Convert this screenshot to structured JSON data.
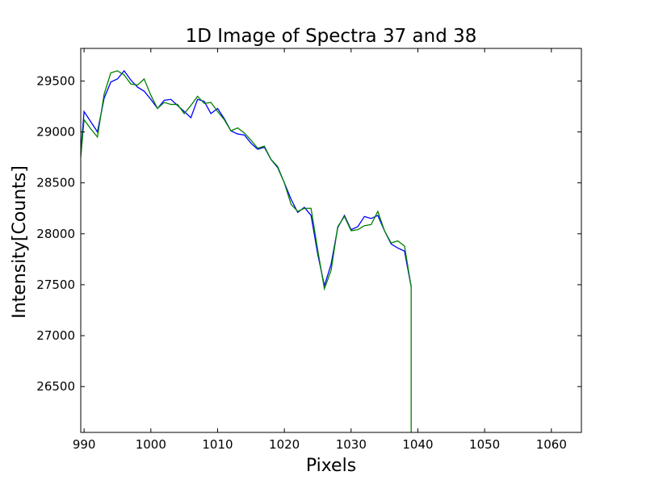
{
  "chart_data": {
    "type": "line",
    "title": "1D Image of Spectra 37 and 38",
    "xlabel": "Pixels",
    "ylabel": "Intensity[Counts]",
    "xlim": [
      989.5,
      1064.5
    ],
    "ylim": [
      26050,
      29820
    ],
    "xticks": [
      990,
      1000,
      1010,
      1020,
      1030,
      1040,
      1050,
      1060
    ],
    "yticks": [
      26500,
      27000,
      27500,
      28000,
      28500,
      29000,
      29500
    ],
    "grid": false,
    "series": [
      {
        "color": "#0000ff",
        "x": [
          989.5,
          990,
          991,
          992,
          993,
          994,
          995,
          996,
          997,
          998,
          999,
          1000,
          1001,
          1002,
          1003,
          1004,
          1005,
          1006,
          1007,
          1008,
          1009,
          1010,
          1011,
          1012,
          1013,
          1014,
          1015,
          1016,
          1017,
          1018,
          1019,
          1020,
          1021,
          1022,
          1023,
          1024,
          1025,
          1026,
          1027,
          1028,
          1029,
          1030,
          1031,
          1032,
          1033,
          1034,
          1035,
          1036,
          1037,
          1038,
          1039
        ],
        "values": [
          28800,
          29200,
          29100,
          29000,
          29330,
          29490,
          29520,
          29600,
          29510,
          29440,
          29400,
          29320,
          29230,
          29310,
          29320,
          29260,
          29200,
          29140,
          29320,
          29300,
          29180,
          29230,
          29130,
          29010,
          28980,
          28970,
          28890,
          28830,
          28850,
          28730,
          28650,
          28500,
          28340,
          28210,
          28260,
          28180,
          27800,
          27490,
          27700,
          28060,
          28180,
          28040,
          28070,
          28170,
          28150,
          28180,
          28030,
          27900,
          27860,
          27830,
          27480
        ]
      },
      {
        "color": "#008000",
        "x": [
          989.5,
          990,
          991,
          992,
          993,
          994,
          995,
          996,
          997,
          998,
          999,
          1000,
          1001,
          1002,
          1003,
          1004,
          1005,
          1006,
          1007,
          1008,
          1009,
          1010,
          1011,
          1012,
          1013,
          1014,
          1015,
          1016,
          1017,
          1018,
          1019,
          1020,
          1021,
          1022,
          1023,
          1024,
          1025,
          1026,
          1027,
          1028,
          1029,
          1030,
          1031,
          1032,
          1033,
          1034,
          1035,
          1036,
          1037,
          1038,
          1039,
          1039
        ],
        "values": [
          28750,
          29120,
          29030,
          28950,
          29370,
          29580,
          29600,
          29560,
          29470,
          29460,
          29520,
          29360,
          29230,
          29290,
          29270,
          29270,
          29180,
          29260,
          29350,
          29280,
          29290,
          29200,
          29120,
          29010,
          29040,
          28990,
          28920,
          28840,
          28860,
          28730,
          28660,
          28500,
          28290,
          28220,
          28250,
          28250,
          27840,
          27460,
          27640,
          28070,
          28170,
          28030,
          28040,
          28080,
          28090,
          28220,
          28030,
          27910,
          27930,
          27880,
          27480,
          26050
        ]
      }
    ]
  }
}
